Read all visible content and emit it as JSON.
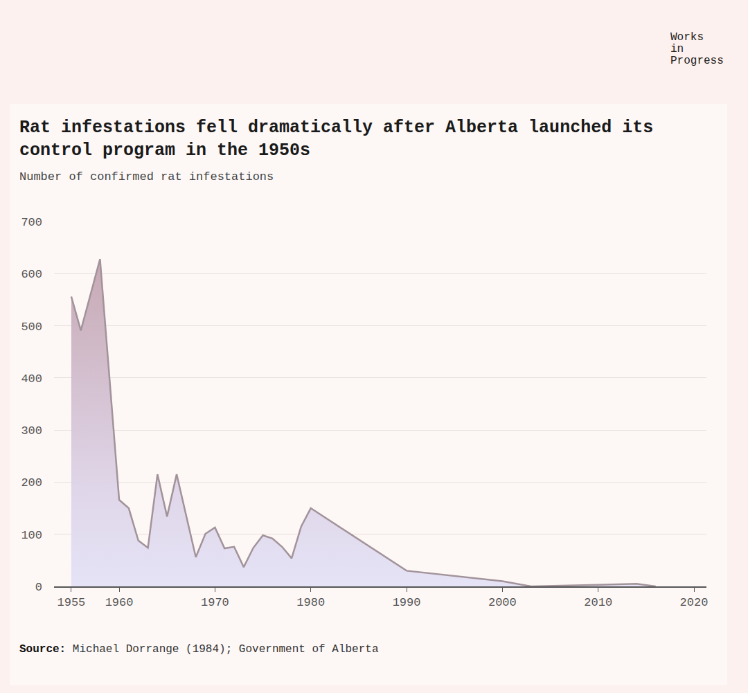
{
  "chart_data": {
    "type": "area",
    "title": "Rat infestations fell dramatically after Alberta launched its control program in the 1950s",
    "subtitle": "Number of confirmed rat infestations",
    "source_label": "Source:",
    "source": "Michael Dorrange (1984); Government of Alberta",
    "brand": "Works in Progress",
    "x": [
      1955,
      1956,
      1958,
      1960,
      1961,
      1962,
      1963,
      1964,
      1965,
      1966,
      1968,
      1969,
      1970,
      1971,
      1972,
      1973,
      1974,
      1975,
      1976,
      1977,
      1978,
      1979,
      1980,
      1990,
      2000,
      2003,
      2010,
      2014,
      2016
    ],
    "values": [
      556,
      491,
      628,
      166,
      150,
      88,
      74,
      215,
      134,
      215,
      56,
      101,
      113,
      73,
      76,
      37,
      74,
      98,
      92,
      76,
      54,
      115,
      150,
      30,
      10,
      0,
      3,
      5,
      0
    ],
    "color": "#a2939a",
    "xlim": [
      1953.2,
      2021.3
    ],
    "xticks": [
      1955,
      1960,
      1970,
      1980,
      1990,
      2000,
      2010,
      2020
    ],
    "ylim": [
      0,
      700
    ],
    "yticks": [
      0,
      100,
      200,
      300,
      400,
      500,
      600,
      700
    ],
    "grid": true
  }
}
